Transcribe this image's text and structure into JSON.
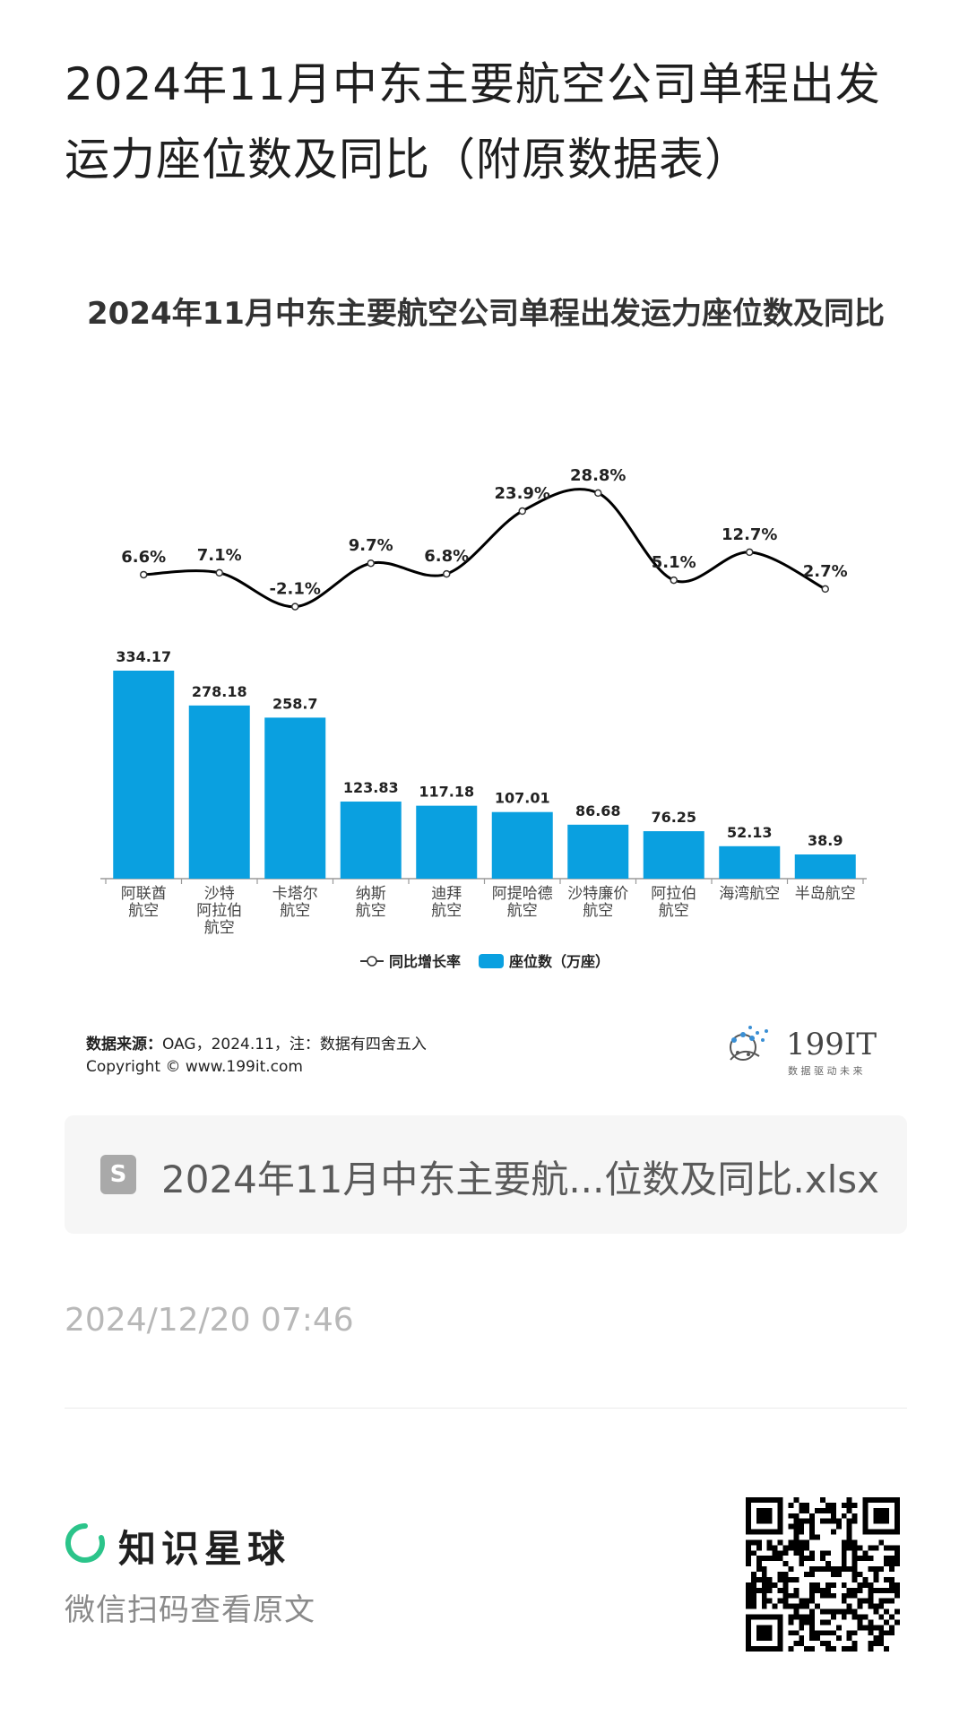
{
  "header": {
    "title": "2024年11月中东主要航空公司单程出发运力座位数及同比（附原数据表）"
  },
  "chart_data": {
    "type": "bar",
    "title": "2024年11月中东主要航空公司单程出发运力座位数及同比",
    "categories": [
      [
        "阿联酋",
        "航空"
      ],
      [
        "沙特",
        "阿拉伯",
        "航空"
      ],
      [
        "卡塔尔",
        "航空"
      ],
      [
        "纳斯",
        "航空"
      ],
      [
        "迪拜",
        "航空"
      ],
      [
        "阿提哈德",
        "航空"
      ],
      [
        "沙特廉价",
        "航空"
      ],
      [
        "阿拉伯",
        "航空"
      ],
      [
        "海湾航空"
      ],
      [
        "半岛航空"
      ]
    ],
    "series": [
      {
        "name": "座位数（万座）",
        "type": "bar",
        "color": "#0aa0e0",
        "values": [
          334.17,
          278.18,
          258.7,
          123.83,
          117.18,
          107.01,
          86.68,
          76.25,
          52.13,
          38.9
        ],
        "labels": [
          "334.17",
          "278.18",
          "258.7",
          "123.83",
          "117.18",
          "107.01",
          "86.68",
          "76.25",
          "52.13",
          "38.9"
        ]
      },
      {
        "name": "同比增长率",
        "type": "line",
        "color": "#000000",
        "values": [
          6.6,
          7.1,
          -2.1,
          9.7,
          6.8,
          23.9,
          28.8,
          5.1,
          12.7,
          2.7
        ],
        "labels": [
          "6.6%",
          "7.1%",
          "-2.1%",
          "9.7%",
          "6.8%",
          "23.9%",
          "28.8%",
          "5.1%",
          "12.7%",
          "2.7%"
        ]
      }
    ],
    "legend": [
      "同比增长率",
      "座位数（万座）"
    ],
    "legend_position": "bottom",
    "grid": false
  },
  "source": {
    "label": "数据来源：",
    "text": "OAG，2024.11，注：数据有四舍五入",
    "copyright": "Copyright ©  www.199it.com"
  },
  "brand": {
    "name": "199IT",
    "slogan": "数 据 驱 动 未 来"
  },
  "attachment": {
    "icon_letter": "S",
    "file_name": "2024年11月中东主要航...位数及同比.xlsx"
  },
  "timestamp": "2024/12/20 07:46",
  "footer": {
    "planet_name": "知识星球",
    "scan_hint": "微信扫码查看原文"
  },
  "colors": {
    "bar": "#0aa0e0",
    "line": "#000000",
    "planet_accent": "#2bc48a"
  }
}
